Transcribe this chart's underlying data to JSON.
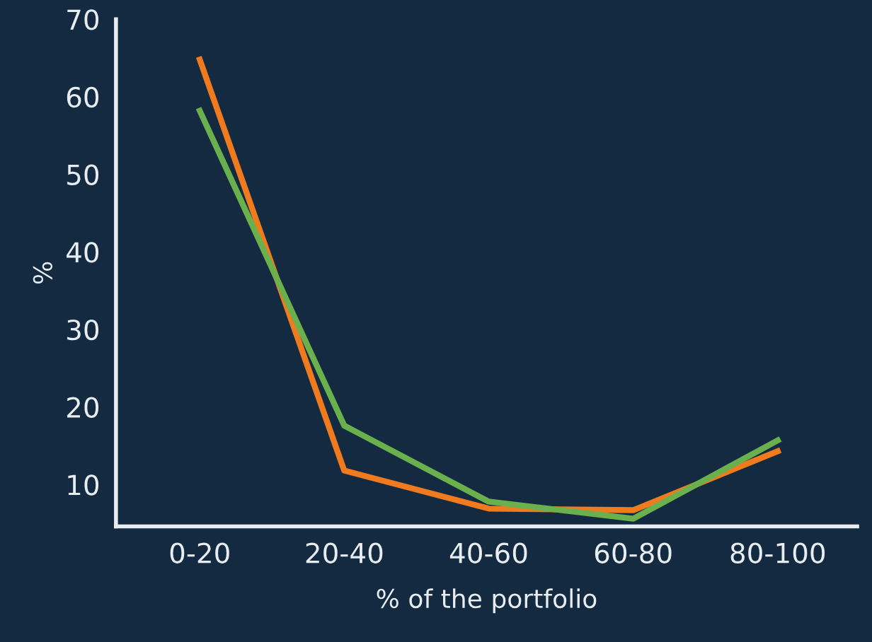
{
  "chart_data": {
    "type": "line",
    "xlabel": "% of the portfolio",
    "ylabel": "%",
    "categories": [
      "0-20",
      "20-40",
      "40-60",
      "60-80",
      "80-100"
    ],
    "series": [
      {
        "color": "#f07b1e",
        "values": [
          64.8,
          11.8,
          6.9,
          6.7,
          14.3
        ]
      },
      {
        "color": "#6ab04c",
        "values": [
          58.2,
          17.6,
          7.8,
          5.6,
          15.7
        ]
      }
    ],
    "ylim": [
      4.6,
      70
    ],
    "yticks": [
      10,
      20,
      30,
      40,
      50,
      60,
      70
    ],
    "grid": false,
    "legend": false,
    "marker": "none",
    "line_style": "solid"
  }
}
